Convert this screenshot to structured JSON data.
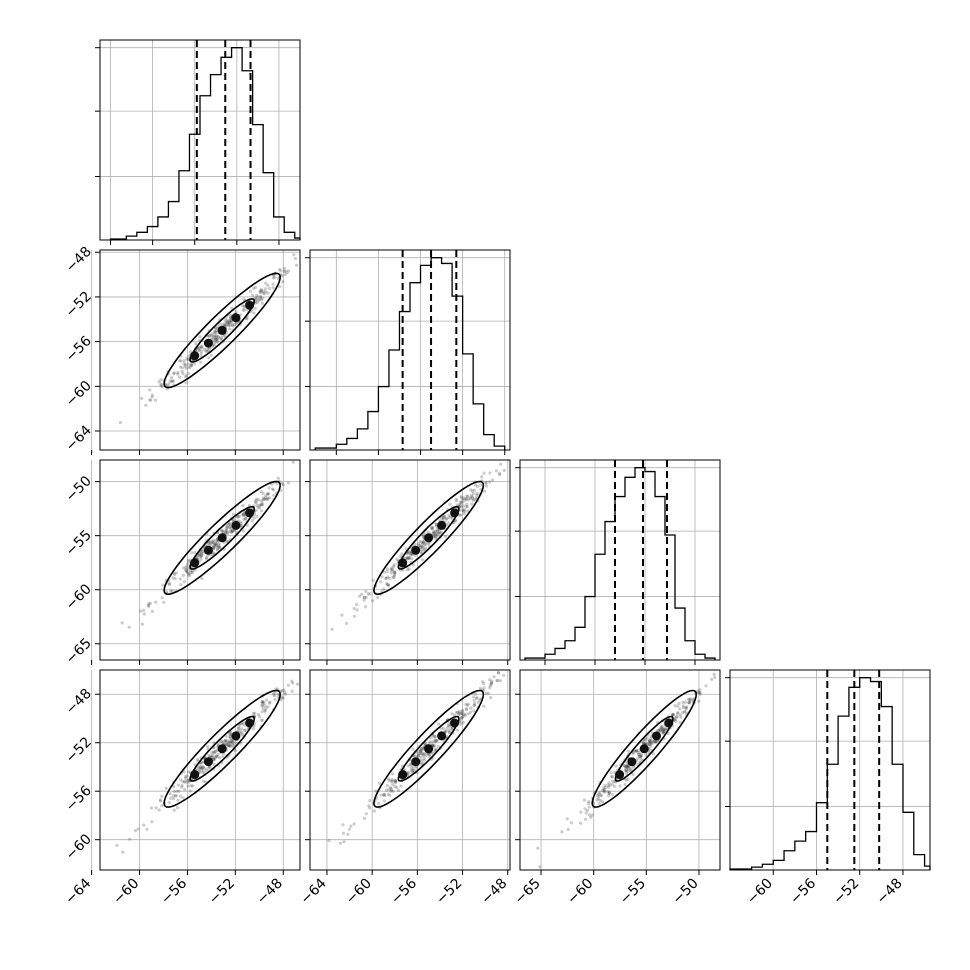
{
  "chart_data": {
    "type": "corner",
    "params": [
      {
        "range": [
          -65,
          -46
        ],
        "ticks": [
          -64,
          -60,
          -56,
          -52,
          -48
        ],
        "tick_labels": [
          "−64",
          "−60",
          "−56",
          "−52",
          "−48"
        ],
        "hist_edges": [
          -64,
          -62.5,
          -61.5,
          -60.5,
          -59.5,
          -58.5,
          -57.5,
          -56.5,
          -55.5,
          -54.5,
          -53.5,
          -52.5,
          -51.5,
          -50.5,
          -49.5,
          -48.5,
          -47.5,
          -46.5,
          -46
        ],
        "hist_counts": [
          0.005,
          0.02,
          0.04,
          0.07,
          0.12,
          0.2,
          0.36,
          0.55,
          0.75,
          0.86,
          0.95,
          1.0,
          0.88,
          0.6,
          0.35,
          0.12,
          0.04,
          0.01
        ],
        "quantiles": [
          -55.8,
          -53.1,
          -50.7
        ]
      },
      {
        "range": [
          -66.5,
          -47.5
        ],
        "ticks": [
          -64,
          -60,
          -56,
          -52,
          -48
        ],
        "tick_labels": [
          "−64",
          "−60",
          "−56",
          "−52",
          "−48"
        ],
        "hist_edges": [
          -66,
          -64,
          -63,
          -62,
          -61,
          -60,
          -59,
          -58,
          -57,
          -56,
          -55,
          -54,
          -53,
          -52,
          -51,
          -50,
          -49,
          -48
        ],
        "hist_counts": [
          0.01,
          0.03,
          0.06,
          0.11,
          0.2,
          0.33,
          0.52,
          0.72,
          0.87,
          0.96,
          1.0,
          0.97,
          0.8,
          0.5,
          0.24,
          0.08,
          0.02
        ],
        "quantiles": [
          -57.7,
          -55.0,
          -52.6
        ]
      },
      {
        "range": [
          -67.5,
          -47.5
        ],
        "ticks": [
          -65,
          -60,
          -55,
          -50
        ],
        "tick_labels": [
          "−65",
          "−60",
          "−55",
          "−50"
        ],
        "hist_edges": [
          -67,
          -65,
          -64,
          -63,
          -62,
          -61,
          -60,
          -59,
          -58,
          -57,
          -56,
          -55,
          -54,
          -53,
          -52,
          -51,
          -50,
          -49,
          -48
        ],
        "hist_counts": [
          0.01,
          0.03,
          0.06,
          0.1,
          0.17,
          0.33,
          0.55,
          0.72,
          0.85,
          0.95,
          1.0,
          0.98,
          0.85,
          0.65,
          0.27,
          0.1,
          0.03,
          0.01
        ],
        "quantiles": [
          -58.0,
          -55.2,
          -52.8
        ]
      },
      {
        "range": [
          -64,
          -45.5
        ],
        "ticks": [
          -60,
          -56,
          -52,
          -48
        ],
        "tick_labels": [
          "−60",
          "−56",
          "−52",
          "−48"
        ],
        "hist_edges": [
          -64,
          -62,
          -61,
          -60,
          -59,
          -58,
          -57,
          -56,
          -55,
          -54,
          -53,
          -52,
          -51,
          -50,
          -49,
          -48,
          -47,
          -46,
          -45.5
        ],
        "hist_counts": [
          0.005,
          0.015,
          0.03,
          0.05,
          0.1,
          0.15,
          0.2,
          0.35,
          0.55,
          0.8,
          0.95,
          1.0,
          0.98,
          0.85,
          0.55,
          0.3,
          0.08,
          0.02
        ],
        "quantiles": [
          -55.0,
          -52.5,
          -50.2
        ]
      }
    ],
    "hist_axis_max": 1.04,
    "quantile_levels": [
      0.16,
      0.5,
      0.84
    ],
    "scatter_pairs": [
      {
        "row": 1,
        "col": 0,
        "x_range": [
          -63.3,
          -46.6
        ],
        "y_range": [
          -65.7,
          -47.8
        ]
      },
      {
        "row": 2,
        "col": 0,
        "x_range": [
          -63.3,
          -46.6
        ],
        "y_range": [
          -66.5,
          -48.0
        ]
      },
      {
        "row": 2,
        "col": 1,
        "x_range": [
          -65.5,
          -47.8
        ],
        "y_range": [
          -66.5,
          -48.0
        ]
      },
      {
        "row": 3,
        "col": 0,
        "x_range": [
          -63.3,
          -46.6
        ],
        "y_range": [
          -62.5,
          -46.0
        ]
      },
      {
        "row": 3,
        "col": 1,
        "x_range": [
          -65.5,
          -47.8
        ],
        "y_range": [
          -62.5,
          -46.0
        ]
      },
      {
        "row": 3,
        "col": 2,
        "x_range": [
          -67.0,
          -48.0
        ],
        "y_range": [
          -62.5,
          -46.0
        ]
      }
    ],
    "grid": true,
    "colors": {
      "hist_line": "#000000",
      "points": "#333333",
      "contour": "#000000",
      "grid": "#b0b0b0"
    }
  }
}
